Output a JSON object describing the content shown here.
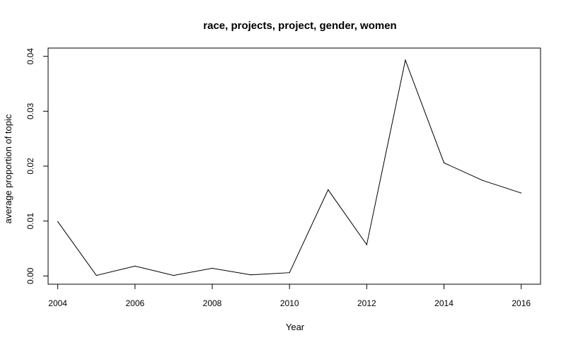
{
  "chart_data": {
    "type": "line",
    "title": "race, projects, project, gender, women",
    "xlabel": "Year",
    "ylabel": "average proportion of topic",
    "xlim": [
      2003.75,
      2016.5
    ],
    "ylim": [
      -0.0015,
      0.0415
    ],
    "xticks": [
      2004,
      2006,
      2008,
      2010,
      2012,
      2014,
      2016
    ],
    "xtick_labels": [
      "2004",
      "2006",
      "2008",
      "2010",
      "2012",
      "2014",
      "2016"
    ],
    "yticks": [
      0.0,
      0.01,
      0.02,
      0.03,
      0.04
    ],
    "ytick_labels": [
      "0.00",
      "0.01",
      "0.02",
      "0.03",
      "0.04"
    ],
    "grid": false,
    "line_color": "#000000",
    "series": [
      {
        "x": [
          2004,
          2005,
          2006,
          2007,
          2008,
          2009,
          2010,
          2011,
          2012,
          2013,
          2014,
          2015,
          2016
        ],
        "values": [
          0.0099,
          0.0001,
          0.0018,
          0.0001,
          0.0014,
          0.0002,
          0.0006,
          0.0157,
          0.0057,
          0.0393,
          0.0206,
          0.0174,
          0.0151
        ]
      }
    ]
  }
}
